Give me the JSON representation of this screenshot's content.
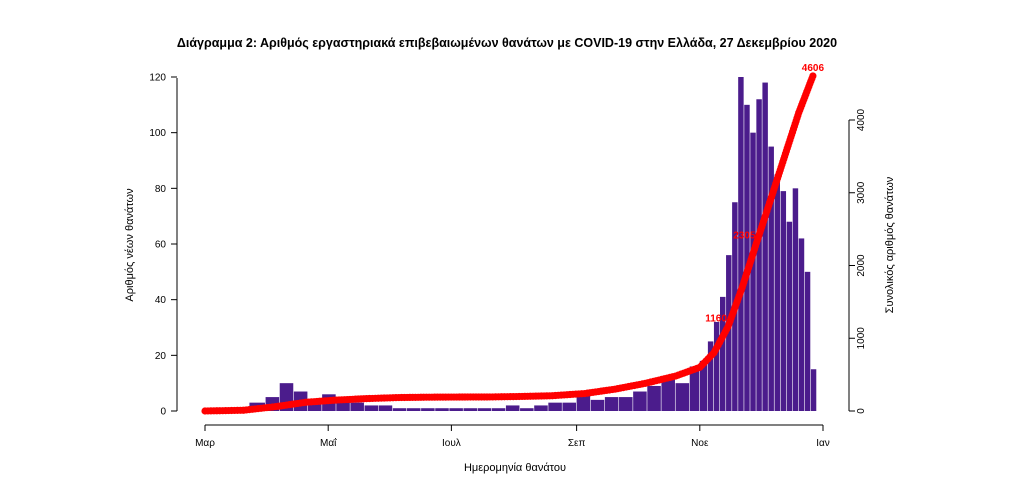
{
  "chart_data": {
    "type": "bar",
    "title": "Διάγραμμα 2: Αριθμός εργαστηριακά επιβεβαιωμένων θανάτων με COVID-19 στην Ελλάδα, 27 Δεκεμβρίου 2020",
    "xlabel": "Ημερομηνία θανάτου",
    "ylabel": "Αριθμός νέων θανάτων",
    "y2label": "Συνολικός αριθμός θανάτων",
    "x_ticks": [
      "Μαρ",
      "Μαΐ",
      "Ιουλ",
      "Σεπ",
      "Νοε",
      "Ιαν"
    ],
    "y_ticks": [
      0,
      20,
      40,
      60,
      80,
      100,
      120
    ],
    "y2_ticks": [
      0,
      1000,
      2000,
      3000,
      4000
    ],
    "ylim": [
      0,
      125
    ],
    "y2lim": [
      0,
      4700
    ],
    "grid": false,
    "colors": {
      "bars": "#4b1c8c",
      "cumulative": "#ff0000"
    },
    "series": [
      {
        "name": "Αριθμός νέων θανάτων",
        "kind": "bar",
        "x": [
          "2020-03-01",
          "2020-03-16",
          "2020-03-23",
          "2020-03-31",
          "2020-04-07",
          "2020-04-14",
          "2020-04-21",
          "2020-04-28",
          "2020-05-05",
          "2020-05-12",
          "2020-05-19",
          "2020-05-26",
          "2020-06-02",
          "2020-06-09",
          "2020-06-16",
          "2020-06-23",
          "2020-06-30",
          "2020-07-07",
          "2020-07-14",
          "2020-07-21",
          "2020-07-28",
          "2020-08-04",
          "2020-08-11",
          "2020-08-18",
          "2020-08-25",
          "2020-09-01",
          "2020-09-08",
          "2020-09-15",
          "2020-09-22",
          "2020-09-29",
          "2020-10-06",
          "2020-10-13",
          "2020-10-20",
          "2020-10-27",
          "2020-11-01",
          "2020-11-05",
          "2020-11-08",
          "2020-11-11",
          "2020-11-14",
          "2020-11-17",
          "2020-11-20",
          "2020-11-23",
          "2020-11-26",
          "2020-11-29",
          "2020-12-02",
          "2020-12-05",
          "2020-12-08",
          "2020-12-11",
          "2020-12-14",
          "2020-12-17",
          "2020-12-20",
          "2020-12-23",
          "2020-12-26"
        ],
        "values": [
          0,
          1,
          3,
          5,
          10,
          7,
          4,
          6,
          4,
          3,
          2,
          2,
          1,
          1,
          1,
          1,
          1,
          1,
          1,
          1,
          2,
          1,
          2,
          3,
          3,
          6,
          4,
          5,
          5,
          7,
          9,
          12,
          10,
          16,
          18,
          25,
          32,
          41,
          56,
          75,
          120,
          110,
          100,
          112,
          118,
          95,
          85,
          79,
          68,
          80,
          62,
          50,
          15
        ]
      },
      {
        "name": "Συνολικός αριθμός θανάτων",
        "kind": "line",
        "x": [
          "2020-03-01",
          "2020-03-20",
          "2020-04-05",
          "2020-04-20",
          "2020-05-05",
          "2020-05-20",
          "2020-06-05",
          "2020-06-20",
          "2020-07-05",
          "2020-07-20",
          "2020-08-05",
          "2020-08-20",
          "2020-09-05",
          "2020-09-20",
          "2020-10-05",
          "2020-10-20",
          "2020-11-01",
          "2020-11-08",
          "2020-11-15",
          "2020-11-22",
          "2020-11-29",
          "2020-12-06",
          "2020-12-13",
          "2020-12-20",
          "2020-12-27"
        ],
        "values": [
          0,
          10,
          60,
          120,
          150,
          170,
          185,
          190,
          192,
          193,
          200,
          210,
          240,
          300,
          380,
          480,
          600,
          800,
          1160,
          1700,
          2305,
          2900,
          3500,
          4100,
          4606
        ]
      }
    ],
    "annotations": [
      "4606",
      "2305",
      "1160"
    ]
  }
}
